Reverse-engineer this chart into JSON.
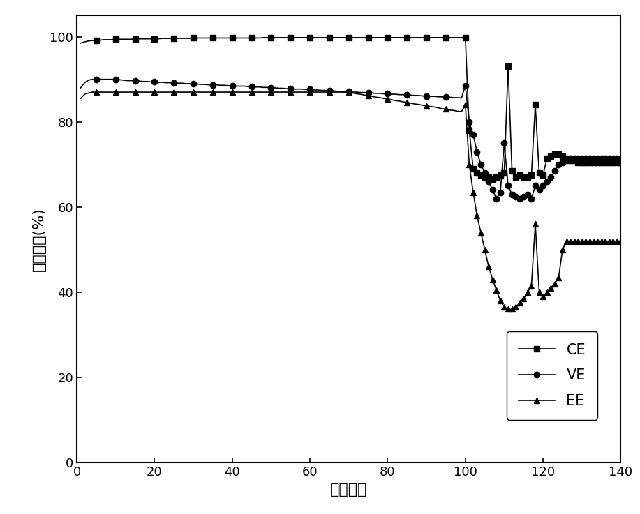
{
  "xlabel": "循环圈数",
  "ylabel": "电池效率(%)",
  "xlim": [
    0,
    140
  ],
  "ylim": [
    0,
    105
  ],
  "xticks": [
    0,
    20,
    40,
    60,
    80,
    100,
    120,
    140
  ],
  "yticks": [
    0,
    20,
    40,
    60,
    80,
    100
  ],
  "color": "#000000",
  "CE_x": [
    1,
    2,
    3,
    4,
    5,
    6,
    7,
    8,
    9,
    10,
    11,
    12,
    13,
    14,
    15,
    16,
    17,
    18,
    19,
    20,
    21,
    22,
    23,
    24,
    25,
    26,
    27,
    28,
    29,
    30,
    31,
    32,
    33,
    34,
    35,
    36,
    37,
    38,
    39,
    40,
    41,
    42,
    43,
    44,
    45,
    46,
    47,
    48,
    49,
    50,
    51,
    52,
    53,
    54,
    55,
    56,
    57,
    58,
    59,
    60,
    61,
    62,
    63,
    64,
    65,
    66,
    67,
    68,
    69,
    70,
    71,
    72,
    73,
    74,
    75,
    76,
    77,
    78,
    79,
    80,
    81,
    82,
    83,
    84,
    85,
    86,
    87,
    88,
    89,
    90,
    91,
    92,
    93,
    94,
    95,
    96,
    97,
    98,
    99,
    100,
    101,
    102,
    103,
    104,
    105,
    106,
    107,
    108,
    109,
    110,
    111,
    112,
    113,
    114,
    115,
    116,
    117,
    118,
    119,
    120,
    121,
    122,
    123,
    124,
    125,
    126,
    127,
    128,
    129,
    130,
    131,
    132,
    133,
    134,
    135,
    136,
    137,
    138,
    139,
    140
  ],
  "CE_y": [
    98.5,
    98.8,
    99.0,
    99.1,
    99.2,
    99.2,
    99.3,
    99.3,
    99.3,
    99.4,
    99.4,
    99.4,
    99.4,
    99.4,
    99.5,
    99.5,
    99.5,
    99.5,
    99.5,
    99.5,
    99.5,
    99.6,
    99.6,
    99.6,
    99.6,
    99.6,
    99.6,
    99.6,
    99.6,
    99.7,
    99.7,
    99.7,
    99.7,
    99.7,
    99.7,
    99.7,
    99.7,
    99.7,
    99.7,
    99.7,
    99.7,
    99.7,
    99.7,
    99.7,
    99.7,
    99.7,
    99.7,
    99.8,
    99.8,
    99.8,
    99.8,
    99.8,
    99.8,
    99.8,
    99.8,
    99.8,
    99.8,
    99.8,
    99.8,
    99.8,
    99.8,
    99.8,
    99.8,
    99.8,
    99.8,
    99.8,
    99.8,
    99.8,
    99.8,
    99.8,
    99.8,
    99.8,
    99.8,
    99.8,
    99.8,
    99.8,
    99.8,
    99.8,
    99.8,
    99.8,
    99.8,
    99.8,
    99.8,
    99.8,
    99.8,
    99.8,
    99.8,
    99.8,
    99.8,
    99.8,
    99.8,
    99.8,
    99.8,
    99.8,
    99.8,
    99.8,
    99.8,
    99.8,
    99.8,
    99.8,
    78.0,
    69.0,
    68.0,
    67.5,
    67.0,
    67.0,
    66.5,
    67.0,
    67.5,
    68.0,
    93.0,
    68.5,
    67.0,
    67.5,
    67.0,
    67.0,
    67.5,
    84.0,
    68.0,
    67.5,
    71.5,
    72.0,
    72.5,
    72.5,
    72.0,
    71.5,
    71.0,
    71.0,
    70.5,
    70.5,
    70.5,
    70.5,
    70.5,
    70.5,
    70.5,
    70.5,
    70.5,
    70.5,
    70.5,
    70.5
  ],
  "VE_x": [
    1,
    2,
    3,
    4,
    5,
    6,
    7,
    8,
    9,
    10,
    11,
    12,
    13,
    14,
    15,
    16,
    17,
    18,
    19,
    20,
    21,
    22,
    23,
    24,
    25,
    26,
    27,
    28,
    29,
    30,
    31,
    32,
    33,
    34,
    35,
    36,
    37,
    38,
    39,
    40,
    41,
    42,
    43,
    44,
    45,
    46,
    47,
    48,
    49,
    50,
    51,
    52,
    53,
    54,
    55,
    56,
    57,
    58,
    59,
    60,
    61,
    62,
    63,
    64,
    65,
    66,
    67,
    68,
    69,
    70,
    71,
    72,
    73,
    74,
    75,
    76,
    77,
    78,
    79,
    80,
    81,
    82,
    83,
    84,
    85,
    86,
    87,
    88,
    89,
    90,
    91,
    92,
    93,
    94,
    95,
    96,
    97,
    98,
    99,
    100,
    101,
    102,
    103,
    104,
    105,
    106,
    107,
    108,
    109,
    110,
    111,
    112,
    113,
    114,
    115,
    116,
    117,
    118,
    119,
    120,
    121,
    122,
    123,
    124,
    125,
    126,
    127,
    128,
    129,
    130,
    131,
    132,
    133,
    134,
    135,
    136,
    137,
    138,
    139,
    140
  ],
  "VE_y": [
    88.0,
    89.2,
    89.8,
    90.0,
    90.0,
    90.0,
    90.0,
    90.0,
    90.0,
    90.0,
    89.9,
    89.8,
    89.7,
    89.7,
    89.6,
    89.6,
    89.5,
    89.5,
    89.4,
    89.4,
    89.3,
    89.3,
    89.2,
    89.2,
    89.2,
    89.1,
    89.1,
    89.0,
    89.0,
    88.9,
    88.9,
    88.8,
    88.8,
    88.7,
    88.7,
    88.7,
    88.6,
    88.6,
    88.5,
    88.5,
    88.4,
    88.4,
    88.4,
    88.3,
    88.3,
    88.2,
    88.2,
    88.1,
    88.1,
    88.0,
    88.0,
    87.9,
    87.9,
    87.8,
    87.8,
    87.7,
    87.7,
    87.7,
    87.6,
    87.6,
    87.5,
    87.5,
    87.4,
    87.4,
    87.3,
    87.3,
    87.2,
    87.2,
    87.1,
    87.1,
    87.0,
    87.0,
    86.9,
    86.9,
    86.8,
    86.8,
    86.7,
    86.7,
    86.6,
    86.6,
    86.5,
    86.5,
    86.4,
    86.4,
    86.3,
    86.3,
    86.2,
    86.2,
    86.1,
    86.1,
    86.0,
    86.0,
    85.9,
    85.9,
    85.8,
    85.8,
    85.7,
    85.7,
    85.6,
    88.5,
    80.0,
    77.0,
    73.0,
    70.0,
    68.0,
    66.0,
    64.0,
    62.0,
    63.5,
    75.0,
    65.0,
    63.0,
    62.5,
    62.0,
    62.5,
    63.0,
    62.0,
    65.0,
    64.0,
    65.0,
    66.0,
    67.0,
    68.5,
    70.0,
    70.5,
    71.0,
    71.5,
    71.5,
    71.5,
    71.5,
    71.5,
    71.5,
    71.5,
    71.5,
    71.5,
    71.5,
    71.5,
    71.5,
    71.5,
    71.5
  ],
  "EE_x": [
    1,
    2,
    3,
    4,
    5,
    6,
    7,
    8,
    9,
    10,
    11,
    12,
    13,
    14,
    15,
    16,
    17,
    18,
    19,
    20,
    21,
    22,
    23,
    24,
    25,
    26,
    27,
    28,
    29,
    30,
    31,
    32,
    33,
    34,
    35,
    36,
    37,
    38,
    39,
    40,
    41,
    42,
    43,
    44,
    45,
    46,
    47,
    48,
    49,
    50,
    51,
    52,
    53,
    54,
    55,
    56,
    57,
    58,
    59,
    60,
    61,
    62,
    63,
    64,
    65,
    66,
    67,
    68,
    69,
    70,
    71,
    72,
    73,
    74,
    75,
    76,
    77,
    78,
    79,
    80,
    81,
    82,
    83,
    84,
    85,
    86,
    87,
    88,
    89,
    90,
    91,
    92,
    93,
    94,
    95,
    96,
    97,
    98,
    99,
    100,
    101,
    102,
    103,
    104,
    105,
    106,
    107,
    108,
    109,
    110,
    111,
    112,
    113,
    114,
    115,
    116,
    117,
    118,
    119,
    120,
    121,
    122,
    123,
    124,
    125,
    126,
    127,
    128,
    129,
    130,
    131,
    132,
    133,
    134,
    135,
    136,
    137,
    138,
    139,
    140
  ],
  "EE_y": [
    85.5,
    86.5,
    86.8,
    87.0,
    87.0,
    87.0,
    87.0,
    87.0,
    87.0,
    87.0,
    87.0,
    87.0,
    87.0,
    87.0,
    87.0,
    87.0,
    87.0,
    87.0,
    87.0,
    87.0,
    87.0,
    87.0,
    87.0,
    87.0,
    87.0,
    87.0,
    87.0,
    87.0,
    87.0,
    87.0,
    87.0,
    87.0,
    87.0,
    87.0,
    87.0,
    87.0,
    87.0,
    87.0,
    87.0,
    87.0,
    87.0,
    87.0,
    87.0,
    87.0,
    87.0,
    87.0,
    87.0,
    87.0,
    87.0,
    87.0,
    87.0,
    87.0,
    87.0,
    87.0,
    87.0,
    87.0,
    87.0,
    87.0,
    87.0,
    87.0,
    87.0,
    87.0,
    87.0,
    87.0,
    87.0,
    87.0,
    87.0,
    87.0,
    87.0,
    87.0,
    86.8,
    86.6,
    86.5,
    86.3,
    86.2,
    86.0,
    85.8,
    85.7,
    85.5,
    85.4,
    85.2,
    85.0,
    84.9,
    84.7,
    84.6,
    84.4,
    84.2,
    84.1,
    83.9,
    83.8,
    83.6,
    83.5,
    83.3,
    83.1,
    83.0,
    82.8,
    82.7,
    82.5,
    82.4,
    84.0,
    70.0,
    63.5,
    58.0,
    54.0,
    50.0,
    46.0,
    43.0,
    40.5,
    38.0,
    36.5,
    36.0,
    36.0,
    36.5,
    37.5,
    38.5,
    40.0,
    41.5,
    56.0,
    40.0,
    39.0,
    40.0,
    41.0,
    42.0,
    43.5,
    50.0,
    52.0,
    52.0,
    52.0,
    52.0,
    52.0,
    52.0,
    52.0,
    52.0,
    52.0,
    52.0,
    52.0,
    52.0,
    52.0,
    52.0,
    52.0
  ],
  "marker_every_x": [
    5,
    10,
    15,
    20,
    25,
    30,
    35,
    40,
    45,
    50,
    55,
    60,
    65,
    70,
    75,
    80,
    85,
    90,
    95,
    100,
    101,
    102,
    103,
    104,
    105,
    106,
    107,
    108,
    109,
    110,
    111,
    112,
    113,
    114,
    115,
    116,
    117,
    118,
    119,
    120,
    121,
    122,
    123,
    124,
    125,
    126,
    127,
    128,
    129,
    130,
    131,
    132,
    133,
    134,
    135,
    136,
    137,
    138,
    139,
    140
  ],
  "markersize": 6,
  "linewidth": 1.2,
  "figsize": [
    9.17,
    7.37
  ],
  "dpi": 100
}
